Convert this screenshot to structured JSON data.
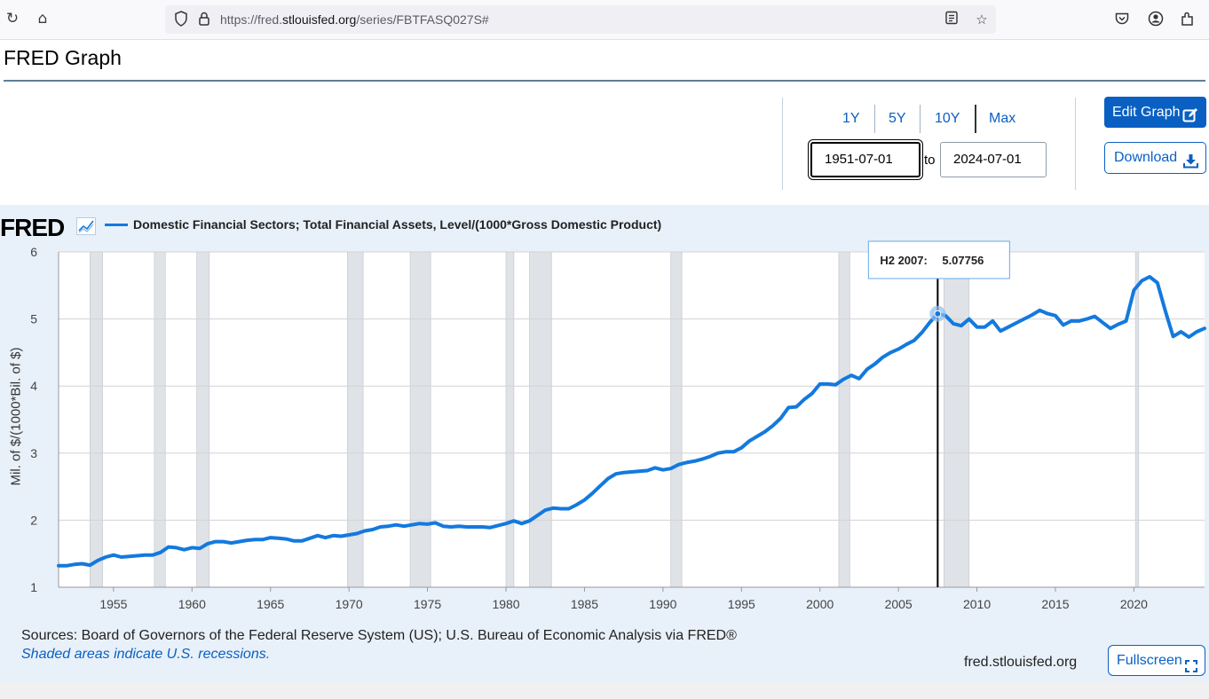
{
  "browser": {
    "url_prefix": "https://fred.",
    "url_domain": "stlouisfed.org",
    "url_path": "/series/FBTFASQ027S#",
    "icons": [
      "reload-icon",
      "home-icon",
      "shield-icon",
      "lock-icon",
      "reader-view-icon",
      "bookmark-star-icon",
      "pocket-icon",
      "account-icon",
      "extensions-icon"
    ]
  },
  "page": {
    "title": "FRED Graph"
  },
  "controls": {
    "ranges": [
      "1Y",
      "5Y",
      "10Y",
      "Max"
    ],
    "start_date": "1951-07-01",
    "end_date": "2024-07-01",
    "to_label": "to",
    "edit_graph": "Edit Graph",
    "download": "Download"
  },
  "legend": {
    "logo": "FRED",
    "series_label": "Domestic Financial Sectors; Total Financial Assets, Level/(1000*Gross Domestic Product)"
  },
  "footer": {
    "sources": "Sources: Board of Governors of the Federal Reserve System (US); U.S. Bureau of Economic Analysis via FRED®",
    "recession_note": "Shaded areas indicate U.S. recessions.",
    "site": "fred.stlouisfed.org",
    "fullscreen": "Fullscreen"
  },
  "chart_data": {
    "type": "line",
    "title": "",
    "ylabel": "Mil. of $/(1000*Bil. of $)",
    "xlabel": "",
    "xlim": [
      1951.5,
      2024.5
    ],
    "ylim": [
      1,
      6
    ],
    "yticks": [
      1,
      2,
      3,
      4,
      5,
      6
    ],
    "xticks": [
      1955,
      1960,
      1965,
      1970,
      1975,
      1980,
      1985,
      1990,
      1995,
      2000,
      2005,
      2010,
      2015,
      2020
    ],
    "grid": true,
    "line_color": "#1379de",
    "recession_color": "#dfe3e8",
    "recessions": [
      [
        1953.5,
        1954.3
      ],
      [
        1957.6,
        1958.3
      ],
      [
        1960.3,
        1961.1
      ],
      [
        1969.9,
        1970.9
      ],
      [
        1973.9,
        1975.2
      ],
      [
        1980.0,
        1980.5
      ],
      [
        1981.5,
        1982.9
      ],
      [
        1990.5,
        1991.2
      ],
      [
        2001.2,
        2001.9
      ],
      [
        2007.9,
        2009.5
      ],
      [
        2020.1,
        2020.3
      ]
    ],
    "series": [
      {
        "name": "Domestic Financial Sectors; Total Financial Assets, Level/(1000*Gross Domestic Product)",
        "x": [
          1951.5,
          1952,
          1952.5,
          1953,
          1953.5,
          1954,
          1954.5,
          1955,
          1955.5,
          1956,
          1956.5,
          1957,
          1957.5,
          1958,
          1958.5,
          1959,
          1959.5,
          1960,
          1960.5,
          1961,
          1961.5,
          1962,
          1962.5,
          1963,
          1963.5,
          1964,
          1964.5,
          1965,
          1965.5,
          1966,
          1966.5,
          1967,
          1967.5,
          1968,
          1968.5,
          1969,
          1969.5,
          1970,
          1970.5,
          1971,
          1971.5,
          1972,
          1972.5,
          1973,
          1973.5,
          1974,
          1974.5,
          1975,
          1975.5,
          1976,
          1976.5,
          1977,
          1977.5,
          1978,
          1978.5,
          1979,
          1979.5,
          1980,
          1980.5,
          1981,
          1981.5,
          1982,
          1982.5,
          1983,
          1983.5,
          1984,
          1984.5,
          1985,
          1985.5,
          1986,
          1986.5,
          1987,
          1987.5,
          1988,
          1988.5,
          1989,
          1989.5,
          1990,
          1990.5,
          1991,
          1991.5,
          1992,
          1992.5,
          1993,
          1993.5,
          1994,
          1994.5,
          1995,
          1995.5,
          1996,
          1996.5,
          1997,
          1997.5,
          1998,
          1998.5,
          1999,
          1999.5,
          2000,
          2000.5,
          2001,
          2001.5,
          2002,
          2002.5,
          2003,
          2003.5,
          2004,
          2004.5,
          2005,
          2005.5,
          2006,
          2006.5,
          2007,
          2007.5,
          2008,
          2008.5,
          2009,
          2009.5,
          2010,
          2010.5,
          2011,
          2011.5,
          2012,
          2012.5,
          2013,
          2013.5,
          2014,
          2014.5,
          2015,
          2015.5,
          2016,
          2016.5,
          2017,
          2017.5,
          2018,
          2018.5,
          2019,
          2019.5,
          2020,
          2020.5,
          2021,
          2021.5,
          2022,
          2022.5,
          2023,
          2023.5,
          2024,
          2024.5
        ],
        "y": [
          1.32,
          1.32,
          1.34,
          1.35,
          1.33,
          1.4,
          1.45,
          1.48,
          1.45,
          1.46,
          1.47,
          1.48,
          1.48,
          1.52,
          1.6,
          1.59,
          1.56,
          1.59,
          1.58,
          1.65,
          1.68,
          1.68,
          1.66,
          1.68,
          1.7,
          1.71,
          1.71,
          1.74,
          1.73,
          1.72,
          1.69,
          1.69,
          1.73,
          1.77,
          1.74,
          1.77,
          1.76,
          1.78,
          1.8,
          1.84,
          1.86,
          1.9,
          1.91,
          1.93,
          1.91,
          1.93,
          1.95,
          1.94,
          1.96,
          1.91,
          1.9,
          1.91,
          1.9,
          1.9,
          1.9,
          1.89,
          1.92,
          1.95,
          1.99,
          1.95,
          1.99,
          2.07,
          2.15,
          2.18,
          2.17,
          2.17,
          2.23,
          2.3,
          2.4,
          2.51,
          2.62,
          2.69,
          2.71,
          2.72,
          2.73,
          2.74,
          2.78,
          2.75,
          2.77,
          2.83,
          2.86,
          2.88,
          2.91,
          2.95,
          3.0,
          3.02,
          3.02,
          3.08,
          3.18,
          3.25,
          3.32,
          3.41,
          3.52,
          3.68,
          3.69,
          3.8,
          3.89,
          4.03,
          4.03,
          4.02,
          4.1,
          4.16,
          4.11,
          4.25,
          4.33,
          4.43,
          4.5,
          4.55,
          4.62,
          4.68,
          4.8,
          4.95,
          5.08,
          5.05,
          4.93,
          4.9,
          5.0,
          4.88,
          4.88,
          4.97,
          4.82,
          4.88,
          4.94,
          5.0,
          5.06,
          5.13,
          5.08,
          5.05,
          4.91,
          4.97,
          4.97,
          5.0,
          5.04,
          4.95,
          4.86,
          4.92,
          4.97,
          5.43,
          5.57,
          5.63,
          5.54,
          5.12,
          4.74,
          4.81,
          4.73,
          4.81,
          4.86
        ]
      }
    ],
    "tooltip": {
      "label": "H2 2007:",
      "value": "5.07756",
      "x": 2007.5,
      "y": 5.07756
    }
  }
}
